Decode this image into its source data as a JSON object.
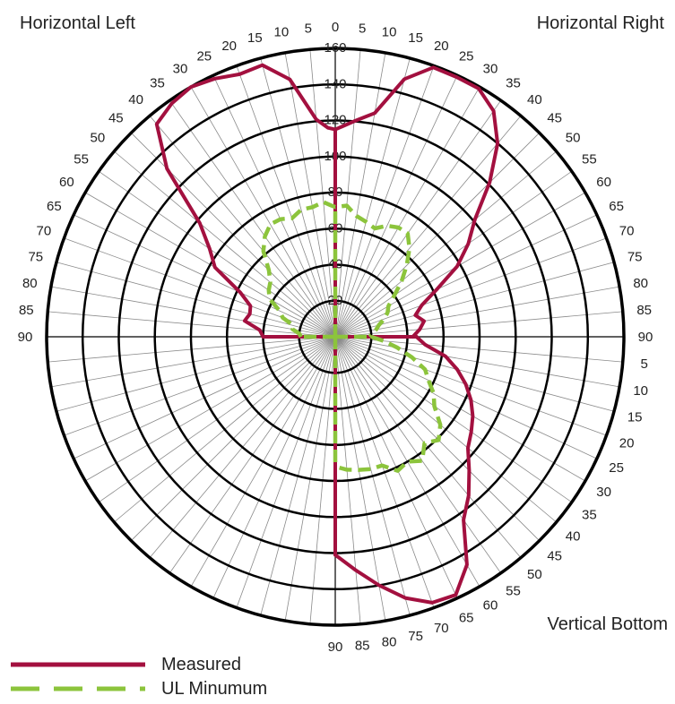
{
  "header": {
    "horizontal_left": "Horizontal Left",
    "horizontal_right": "Horizontal Right",
    "vertical_bottom": "Vertical Bottom"
  },
  "legend": {
    "measured": "Measured",
    "ul_minimum": "UL Minumum"
  },
  "colors": {
    "measured": "#a3103f",
    "ul_minimum": "#8cc43c"
  },
  "chart_data": {
    "type": "line",
    "polar": true,
    "title": "",
    "rlim": [
      0,
      160
    ],
    "radial_ticks": [
      20,
      40,
      60,
      80,
      100,
      120,
      140,
      160
    ],
    "angle_labels": {
      "horizontal_left": [
        90,
        85,
        80,
        75,
        70,
        65,
        60,
        55,
        50,
        45,
        40,
        35,
        30,
        25,
        20,
        15,
        10,
        5
      ],
      "horizontal_right": [
        0,
        5,
        10,
        15,
        20,
        25,
        30,
        35,
        40,
        45,
        50,
        55,
        60,
        65,
        70,
        75,
        80,
        85
      ],
      "vertical_bottom": [
        90,
        5,
        10,
        15,
        20,
        25,
        30,
        35,
        40,
        45,
        50,
        55,
        60,
        65,
        70,
        75,
        80,
        85,
        90
      ]
    },
    "series": [
      {
        "name": "Measured",
        "upper_left": {
          "angles": [
            0,
            2,
            5,
            10,
            15,
            20,
            25,
            30,
            35,
            40,
            45,
            50,
            55,
            60,
            65,
            70,
            75,
            80,
            85,
            90
          ],
          "values": [
            115,
            116,
            121,
            145,
            156,
            155,
            158,
            160,
            158,
            154,
            132,
            98,
            85,
            77,
            58,
            50,
            49,
            51,
            42,
            40
          ]
        },
        "upper_right": {
          "angles": [
            0,
            5,
            10,
            15,
            20,
            25,
            30,
            35,
            40,
            45,
            50,
            55,
            60,
            65,
            70,
            75,
            80,
            85,
            90
          ],
          "values": [
            115,
            120,
            126,
            148,
            159,
            159,
            159,
            153,
            140,
            121,
            101,
            90,
            78,
            62,
            51,
            46,
            50,
            47,
            43
          ]
        },
        "vertical_bottom": {
          "angles": [
            0,
            5,
            10,
            15,
            20,
            25,
            30,
            35,
            40,
            45,
            50,
            55,
            60,
            65,
            70,
            75,
            80,
            85,
            90
          ],
          "values": [
            45,
            50,
            62,
            70,
            77,
            83,
            88,
            92,
            96,
            105,
            115,
            124,
            146,
            158,
            157,
            150,
            140,
            130,
            121
          ]
        }
      },
      {
        "name": "UL Minumum",
        "upper_left": {
          "angles": [
            0,
            2,
            5,
            10,
            15,
            20,
            25,
            30,
            35,
            40,
            45,
            50,
            55,
            60,
            65,
            70,
            75,
            80,
            85,
            90
          ],
          "values": [
            72,
            73,
            75,
            73,
            73,
            70,
            72,
            72,
            68,
            62,
            52,
            47,
            45,
            42,
            34,
            31,
            24,
            24,
            20,
            19
          ]
        },
        "upper_right": {
          "angles": [
            0,
            5,
            10,
            15,
            20,
            25,
            30,
            35,
            40,
            45,
            50,
            55,
            60,
            65,
            70,
            75,
            80,
            85,
            90
          ],
          "values": [
            72,
            73,
            68,
            66,
            64,
            68,
            70,
            70,
            64,
            56,
            48,
            40,
            34,
            32,
            29,
            25,
            23,
            21,
            19
          ]
        },
        "vertical_bottom": {
          "angles": [
            0,
            5,
            10,
            15,
            20,
            25,
            30,
            35,
            40,
            45,
            50,
            55,
            60,
            65,
            70,
            75,
            80,
            85,
            90
          ],
          "values": [
            20,
            27,
            35,
            44,
            53,
            57,
            63,
            67,
            76,
            81,
            77,
            84,
            80,
            82,
            76,
            76,
            75,
            74,
            72
          ]
        }
      }
    ]
  }
}
